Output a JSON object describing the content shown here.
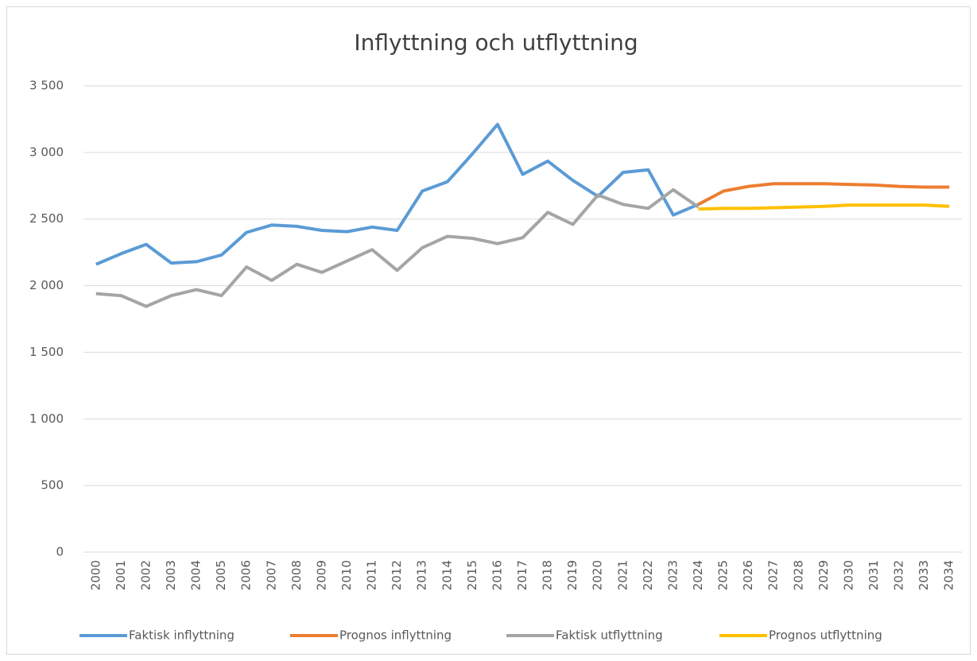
{
  "chart_data": {
    "type": "line",
    "title": "Inflyttning och utflyttning",
    "categories": [
      "2000",
      "2001",
      "2002",
      "2003",
      "2004",
      "2005",
      "2006",
      "2007",
      "2008",
      "2009",
      "2010",
      "2011",
      "2012",
      "2013",
      "2014",
      "2015",
      "2016",
      "2017",
      "2018",
      "2019",
      "2020",
      "2021",
      "2022",
      "2023",
      "2024",
      "2025",
      "2026",
      "2027",
      "2028",
      "2029",
      "2030",
      "2031",
      "2032",
      "2033",
      "2034"
    ],
    "series": [
      {
        "name": "Faktisk inflyttning",
        "color": "#5b9bd5",
        "values": [
          2160,
          2240,
          2310,
          2170,
          2180,
          2230,
          2400,
          2455,
          2445,
          2415,
          2405,
          2440,
          2415,
          2710,
          2780,
          2990,
          3210,
          2835,
          2935,
          2790,
          2670,
          2850,
          2870,
          2530,
          2610,
          null,
          null,
          null,
          null,
          null,
          null,
          null,
          null,
          null,
          null
        ]
      },
      {
        "name": "Prognos inflyttning",
        "color": "#ed7d31",
        "values": [
          null,
          null,
          null,
          null,
          null,
          null,
          null,
          null,
          null,
          null,
          null,
          null,
          null,
          null,
          null,
          null,
          null,
          null,
          null,
          null,
          null,
          null,
          null,
          null,
          2610,
          2710,
          2745,
          2765,
          2765,
          2765,
          2760,
          2755,
          2745,
          2740,
          2740
        ]
      },
      {
        "name": "Faktisk utflyttning",
        "color": "#a5a5a5",
        "values": [
          1940,
          1925,
          1845,
          1925,
          1970,
          1925,
          2140,
          2040,
          2160,
          2100,
          2185,
          2270,
          2115,
          2285,
          2370,
          2355,
          2315,
          2360,
          2550,
          2460,
          2680,
          2610,
          2580,
          2720,
          2590,
          null,
          null,
          null,
          null,
          null,
          null,
          null,
          null,
          null,
          null
        ]
      },
      {
        "name": "Prognos utflyttning",
        "color": "#ffc000",
        "values": [
          null,
          null,
          null,
          null,
          null,
          null,
          null,
          null,
          null,
          null,
          null,
          null,
          null,
          null,
          null,
          null,
          null,
          null,
          null,
          null,
          null,
          null,
          null,
          null,
          2575,
          2580,
          2580,
          2585,
          2590,
          2595,
          2605,
          2605,
          2605,
          2605,
          2595
        ]
      }
    ],
    "ylim": [
      0,
      3500
    ],
    "yticks": [
      0,
      500,
      {
        "value": 1000,
        "label": "1 000"
      },
      {
        "value": 1500,
        "label": "1 500"
      },
      {
        "value": 2000,
        "label": "2 000"
      },
      {
        "value": 2500,
        "label": "2 500"
      },
      {
        "value": 3000,
        "label": "3 000"
      },
      {
        "value": 3500,
        "label": "3 500"
      }
    ],
    "grid": true
  }
}
